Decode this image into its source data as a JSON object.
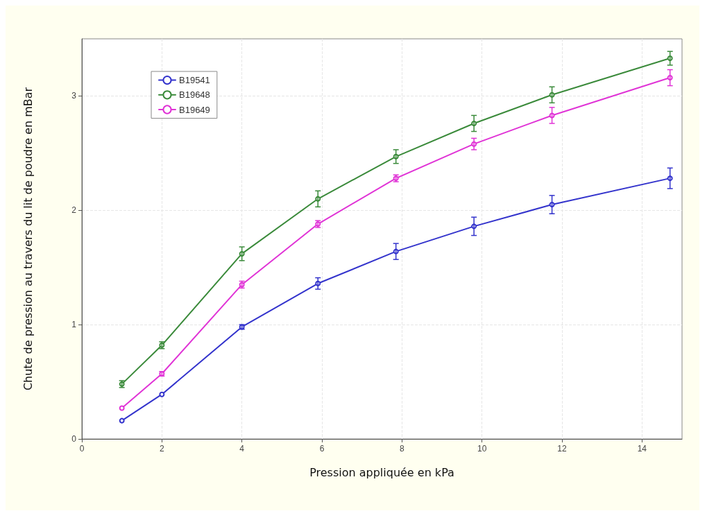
{
  "chart_data": {
    "type": "line",
    "xlabel": "Pression appliquée en kPa",
    "ylabel": "Chute de pression au travers du lit de poudre en mBar",
    "x": [
      1,
      2,
      4,
      5.9,
      7.85,
      9.8,
      11.75,
      14.7
    ],
    "series": [
      {
        "name": "B19541",
        "color": "#3333cc",
        "values": [
          0.16,
          0.39,
          0.98,
          1.36,
          1.64,
          1.86,
          2.05,
          2.28
        ],
        "errors": [
          null,
          null,
          0.02,
          0.05,
          0.07,
          0.08,
          0.08,
          0.09
        ]
      },
      {
        "name": "B19648",
        "color": "#3a8a3a",
        "values": [
          0.48,
          0.82,
          1.62,
          2.1,
          2.47,
          2.76,
          3.01,
          3.33
        ],
        "errors": [
          0.03,
          0.03,
          0.06,
          0.07,
          0.06,
          0.07,
          0.07,
          0.06
        ]
      },
      {
        "name": "B19649",
        "color": "#e033d6",
        "values": [
          0.27,
          0.57,
          1.35,
          1.88,
          2.28,
          2.58,
          2.83,
          3.16
        ],
        "errors": [
          null,
          0.02,
          0.03,
          0.03,
          0.03,
          0.05,
          0.07,
          0.07
        ]
      }
    ],
    "xlim": [
      0,
      15
    ],
    "xticks": [
      0,
      2,
      4,
      6,
      8,
      10,
      12,
      14
    ],
    "ylim": [
      0,
      3.5
    ],
    "yticks": [
      0,
      1,
      2,
      3
    ],
    "grid": true,
    "legend": "top left",
    "marker": "circle",
    "line_style": "solid"
  }
}
